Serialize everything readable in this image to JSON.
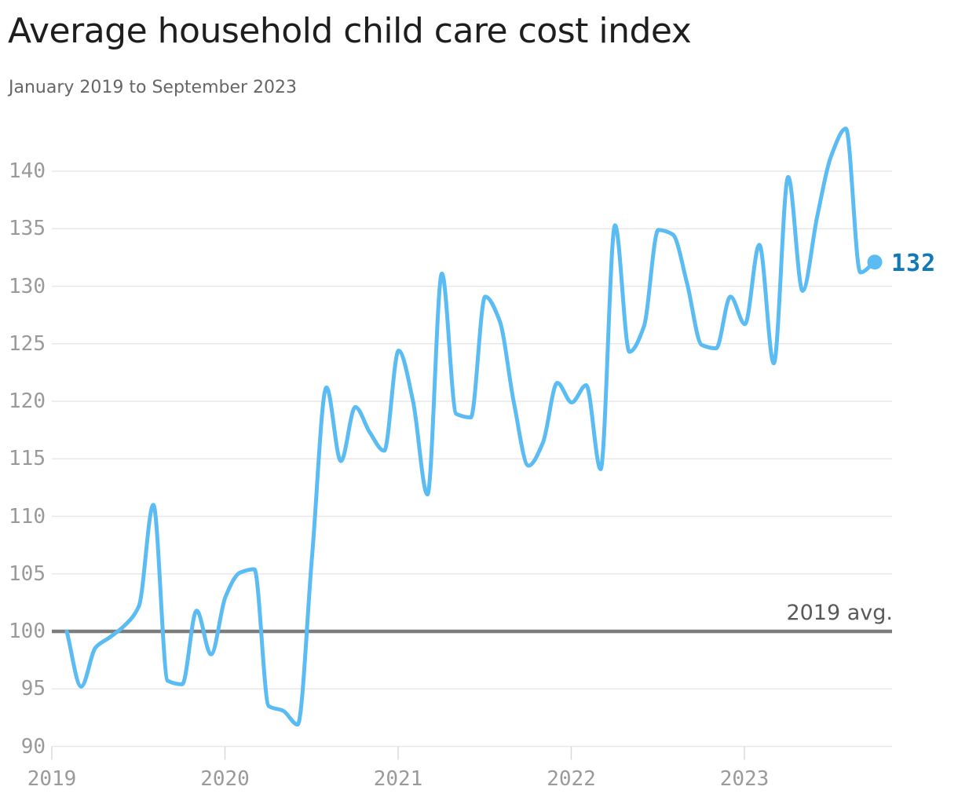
{
  "title": "Average household child care cost index",
  "subtitle": "January 2019 to September 2023",
  "colors": {
    "line": "#5abcf3",
    "end_label": "#1279b7",
    "grid": "#e8e8e8",
    "year_tick": "#d8d8d8",
    "ref_line": "#7d7d7d",
    "title_text": "#1e1e1e",
    "subtitle_text": "#666666",
    "axis_text": "#9a9a9a",
    "ref_label_text": "#595959"
  },
  "chart_data": {
    "type": "line",
    "title": "Average household child care cost index",
    "date_range": "January 2019 to September 2023",
    "x_unit": "month",
    "grid": "horizontal",
    "legend": "none",
    "ylim": [
      90,
      144.5
    ],
    "y_ticks": [
      90,
      95,
      100,
      105,
      110,
      115,
      120,
      125,
      130,
      135,
      140
    ],
    "x_tick_labels": [
      "2019",
      "2020",
      "2021",
      "2022",
      "2023"
    ],
    "ref_line": {
      "value": 100,
      "label": "2019 avg."
    },
    "end_point": {
      "value": 132,
      "label": "132"
    },
    "x_months": [
      "2019-01",
      "2019-02",
      "2019-03",
      "2019-04",
      "2019-05",
      "2019-06",
      "2019-07",
      "2019-08",
      "2019-09",
      "2019-10",
      "2019-11",
      "2019-12",
      "2020-01",
      "2020-02",
      "2020-03",
      "2020-04",
      "2020-05",
      "2020-06",
      "2020-07",
      "2020-08",
      "2020-09",
      "2020-10",
      "2020-11",
      "2020-12",
      "2021-01",
      "2021-02",
      "2021-03",
      "2021-04",
      "2021-05",
      "2021-06",
      "2021-07",
      "2021-08",
      "2021-09",
      "2021-10",
      "2021-11",
      "2021-12",
      "2022-01",
      "2022-02",
      "2022-03",
      "2022-04",
      "2022-05",
      "2022-06",
      "2022-07",
      "2022-08",
      "2022-09",
      "2022-10",
      "2022-11",
      "2022-12",
      "2023-01",
      "2023-02",
      "2023-03",
      "2023-04",
      "2023-05",
      "2023-06",
      "2023-07",
      "2023-08",
      "2023-09"
    ],
    "values": [
      100,
      95.2,
      98.6,
      99.5,
      100.5,
      102.2,
      111,
      95.7,
      95.4,
      101.8,
      98,
      103,
      105.1,
      105.4,
      93.5,
      93.1,
      91.9,
      106.5,
      121.2,
      114.8,
      119.5,
      117.3,
      115.7,
      124.4,
      120,
      111.9,
      131.1,
      118.9,
      118.6,
      129.1,
      127,
      119.8,
      114.4,
      116.4,
      121.6,
      119.9,
      121.4,
      114.1,
      135.3,
      124.3,
      126.5,
      134.9,
      134.5,
      130.2,
      124.9,
      124.6,
      129.1,
      126.7,
      133.6,
      123.3,
      139.5,
      129.6,
      136,
      141.4,
      143.7,
      131.2,
      132.1
    ]
  }
}
